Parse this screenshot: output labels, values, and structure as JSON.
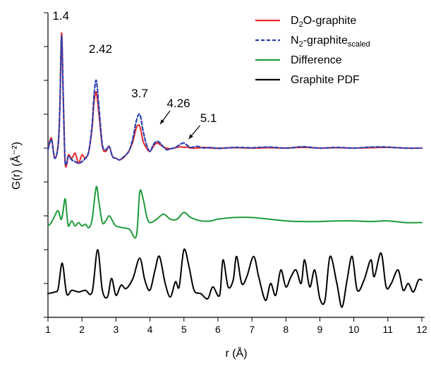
{
  "chart_data": {
    "type": "line",
    "xlabel": "r (Å)",
    "ylabel": "G(r) (Å⁻²)",
    "xlim": [
      1,
      12
    ],
    "x_ticks": [
      "1",
      "2",
      "3",
      "4",
      "5",
      "6",
      "7",
      "8",
      "9",
      "10",
      "11",
      "12"
    ],
    "y_ticks_labeled": false,
    "legend_position": "top-right",
    "legend": [
      {
        "main": "D",
        "sub": "2",
        "rest": "O-graphite",
        "sub2": "",
        "color": "#e8262a",
        "dash": false
      },
      {
        "main": "N",
        "sub": "2",
        "rest": "-graphite",
        "sub2": "scaled",
        "color": "#2a3fb0",
        "dash": true
      },
      {
        "main": "Difference",
        "sub": "",
        "rest": "",
        "sub2": "",
        "color": "#1f9a3a",
        "dash": false
      },
      {
        "main": "Graphite PDF",
        "sub": "",
        "rest": "",
        "sub2": "",
        "color": "#000000",
        "dash": false
      }
    ],
    "annotations": [
      {
        "text": "1.4",
        "x": 1.42
      },
      {
        "text": "2.42",
        "x": 2.42
      },
      {
        "text": "3.7",
        "x": 3.7
      },
      {
        "text": "4.26",
        "x": 4.26
      },
      {
        "text": "5.1",
        "x": 5.1
      }
    ],
    "series": [
      {
        "name": "D₂O-graphite",
        "color": "#e8262a",
        "baseline": 0,
        "x": [
          1.0,
          1.1,
          1.2,
          1.3,
          1.35,
          1.4,
          1.45,
          1.5,
          1.55,
          1.6,
          1.7,
          1.8,
          1.9,
          2.0,
          2.1,
          2.2,
          2.3,
          2.35,
          2.42,
          2.5,
          2.6,
          2.7,
          2.8,
          2.9,
          3.0,
          3.1,
          3.2,
          3.3,
          3.4,
          3.5,
          3.6,
          3.7,
          3.8,
          3.9,
          4.0,
          4.1,
          4.2,
          4.3,
          4.4,
          4.5,
          4.6,
          4.7,
          4.8,
          4.9,
          5.0,
          5.1,
          5.2,
          5.4,
          5.6,
          5.8,
          6.0,
          6.5,
          7.0,
          7.5,
          8.0,
          8.5,
          9.0,
          9.5,
          10.0,
          10.5,
          11.0,
          11.5,
          12.0
        ],
        "y": [
          -0.05,
          0.3,
          -0.3,
          0.1,
          1.2,
          3.4,
          1.5,
          -0.35,
          -0.5,
          -0.2,
          -0.3,
          -0.15,
          -0.45,
          -0.2,
          -0.3,
          -0.1,
          0.6,
          1.3,
          1.65,
          1.0,
          0.05,
          -0.1,
          0.05,
          -0.25,
          -0.3,
          -0.35,
          -0.3,
          -0.2,
          -0.05,
          0.2,
          0.6,
          0.65,
          0.2,
          0.0,
          -0.1,
          0.05,
          0.15,
          0.1,
          0.03,
          0.0,
          -0.02,
          0.0,
          0.02,
          0.04,
          0.02,
          0.03,
          0.0,
          0.0,
          0.02,
          0.0,
          0.0,
          0.01,
          0.0,
          0.01,
          0.0,
          0.02,
          0.0,
          0.01,
          0.0,
          0.01,
          0.02,
          0.0,
          0.0
        ]
      },
      {
        "name": "N₂-graphite scaled",
        "color": "#2a3fb0",
        "baseline": 0,
        "x": [
          1.0,
          1.1,
          1.2,
          1.3,
          1.35,
          1.4,
          1.45,
          1.5,
          1.55,
          1.6,
          1.7,
          1.8,
          1.9,
          2.0,
          2.1,
          2.2,
          2.3,
          2.35,
          2.42,
          2.5,
          2.6,
          2.7,
          2.8,
          2.9,
          3.0,
          3.1,
          3.2,
          3.3,
          3.4,
          3.5,
          3.6,
          3.7,
          3.8,
          3.9,
          4.0,
          4.1,
          4.2,
          4.3,
          4.4,
          4.5,
          4.6,
          4.7,
          4.8,
          4.9,
          5.0,
          5.1,
          5.2,
          5.4,
          5.6,
          5.8,
          6.0,
          6.5,
          7.0,
          7.5,
          8.0,
          8.5,
          9.0,
          9.5,
          10.0,
          10.5,
          11.0,
          11.5,
          12.0
        ],
        "y": [
          -0.05,
          0.25,
          -0.3,
          0.1,
          1.2,
          3.3,
          1.5,
          -0.3,
          -0.45,
          -0.25,
          -0.35,
          -0.4,
          -0.45,
          -0.4,
          -0.3,
          -0.1,
          0.7,
          1.5,
          2.0,
          1.2,
          0.1,
          -0.05,
          0.05,
          -0.25,
          -0.3,
          -0.35,
          -0.28,
          -0.2,
          -0.05,
          0.3,
          0.8,
          1.0,
          0.5,
          0.1,
          -0.1,
          0.1,
          0.2,
          0.15,
          0.03,
          -0.05,
          -0.02,
          0.0,
          0.05,
          0.12,
          0.15,
          0.08,
          0.02,
          0.05,
          0.0,
          0.02,
          -0.01,
          0.02,
          0.01,
          0.03,
          0.0,
          0.04,
          0.0,
          0.02,
          0.0,
          0.03,
          0.03,
          0.0,
          0.0
        ]
      },
      {
        "name": "Difference",
        "color": "#1f9a3a",
        "baseline": -2.2,
        "x": [
          1.0,
          1.1,
          1.2,
          1.3,
          1.4,
          1.5,
          1.55,
          1.6,
          1.7,
          1.8,
          1.9,
          2.0,
          2.1,
          2.2,
          2.3,
          2.42,
          2.5,
          2.6,
          2.7,
          2.8,
          2.9,
          3.0,
          3.2,
          3.4,
          3.6,
          3.7,
          3.8,
          3.9,
          4.0,
          4.2,
          4.4,
          4.6,
          4.8,
          5.0,
          5.2,
          5.5,
          5.8,
          6.0,
          6.5,
          7.0,
          7.5,
          8.0,
          8.5,
          9.0,
          9.5,
          10.0,
          10.5,
          11.0,
          11.5,
          12.0
        ],
        "y": [
          -0.1,
          0.0,
          0.2,
          0.35,
          0.1,
          0.7,
          0.3,
          -0.1,
          0.05,
          -0.1,
          0.0,
          -0.1,
          -0.05,
          -0.15,
          0.1,
          1.05,
          0.6,
          0.0,
          0.05,
          0.2,
          0.05,
          -0.1,
          -0.15,
          -0.2,
          -0.4,
          0.9,
          0.7,
          0.2,
          0.0,
          0.1,
          0.25,
          0.1,
          0.1,
          0.3,
          0.15,
          0.05,
          0.05,
          0.1,
          0.15,
          0.15,
          0.1,
          0.05,
          0.03,
          0.03,
          0.05,
          0.05,
          0.03,
          0.05,
          0.0,
          0.0
        ]
      },
      {
        "name": "Graphite PDF",
        "color": "#000000",
        "baseline": -4.2,
        "x": [
          1.0,
          1.2,
          1.3,
          1.42,
          1.55,
          1.7,
          1.9,
          2.1,
          2.3,
          2.46,
          2.6,
          2.75,
          2.87,
          3.0,
          3.15,
          3.3,
          3.5,
          3.7,
          3.85,
          4.0,
          4.15,
          4.28,
          4.45,
          4.6,
          4.75,
          4.86,
          5.0,
          5.15,
          5.3,
          5.5,
          5.7,
          5.85,
          6.05,
          6.15,
          6.3,
          6.45,
          6.55,
          6.7,
          6.85,
          7.05,
          7.2,
          7.4,
          7.55,
          7.7,
          7.85,
          8.0,
          8.15,
          8.3,
          8.45,
          8.55,
          8.7,
          8.85,
          9.0,
          9.15,
          9.3,
          9.5,
          9.65,
          9.8,
          9.95,
          10.1,
          10.3,
          10.5,
          10.6,
          10.8,
          10.95,
          11.1,
          11.3,
          11.45,
          11.6,
          11.75,
          11.9,
          12.0
        ],
        "y": [
          -0.1,
          -0.05,
          0.05,
          0.8,
          -0.1,
          0.0,
          -0.05,
          0.0,
          -0.05,
          1.2,
          0.0,
          -0.2,
          0.35,
          -0.15,
          0.15,
          0.05,
          0.35,
          0.95,
          0.3,
          0.0,
          0.6,
          1.0,
          0.2,
          -0.2,
          0.25,
          0.1,
          1.2,
          0.7,
          0.0,
          -0.1,
          -0.25,
          0.1,
          -0.15,
          0.9,
          0.1,
          0.3,
          1.0,
          0.2,
          0.4,
          1.0,
          0.4,
          -0.3,
          0.2,
          -0.15,
          0.6,
          0.1,
          0.4,
          0.6,
          0.2,
          0.9,
          0.1,
          0.6,
          -0.25,
          -0.3,
          1.0,
          0.2,
          -0.5,
          0.3,
          1.0,
          0.0,
          0.3,
          0.9,
          0.4,
          1.1,
          0.1,
          0.2,
          0.6,
          0.0,
          0.2,
          -0.05,
          0.3,
          0.3
        ]
      }
    ]
  }
}
